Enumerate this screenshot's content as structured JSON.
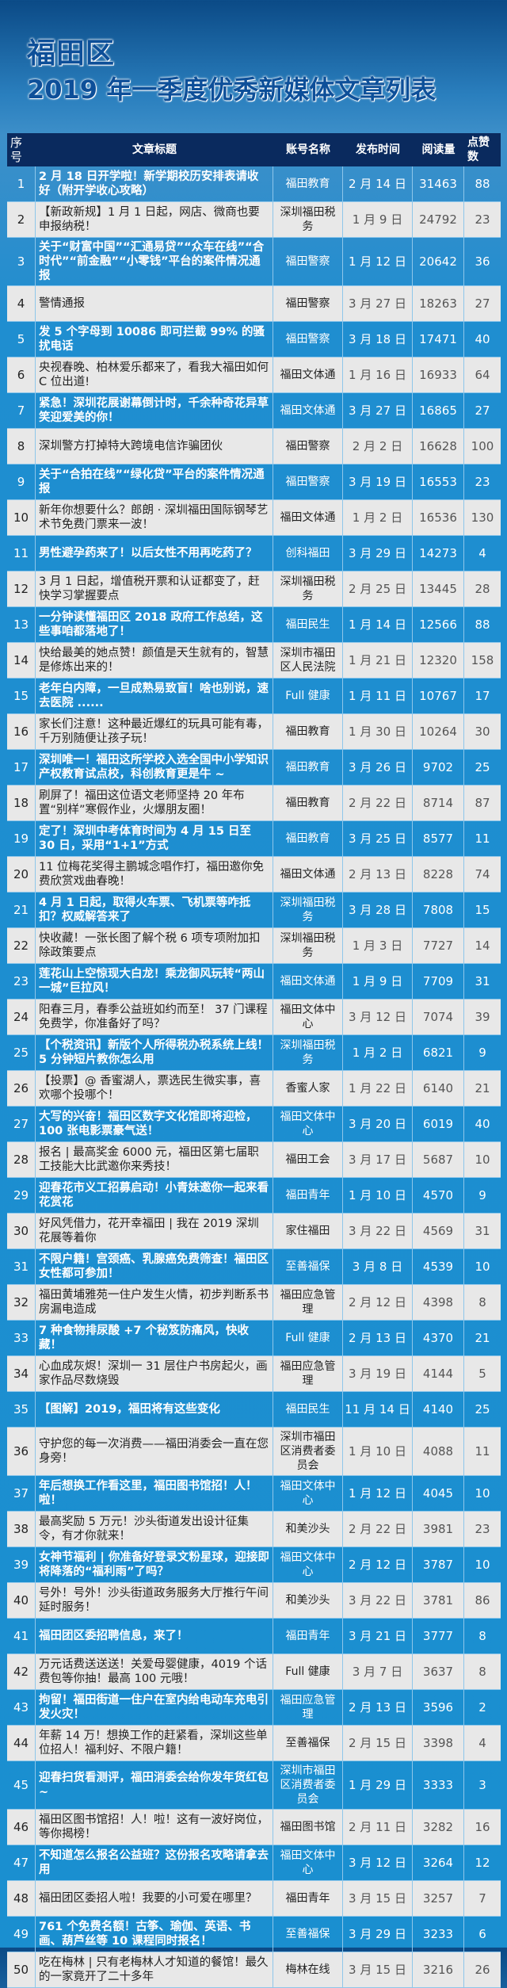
{
  "header": {
    "line1": "福田区",
    "line2": "2019 年一季度优秀新媒体文章列表"
  },
  "columns": [
    "序号",
    "文章标题",
    "账号名称",
    "发布时间",
    "阅读量",
    "点赞数"
  ],
  "colors": {
    "header_bg": "#0a2a5e",
    "odd_row_bg": "#1a8fd0",
    "even_row_bg": "#e8e8e8",
    "title_color": "#0d4f99"
  },
  "rows": [
    {
      "seq": "1",
      "title": "2 月 18 日开学啦！新学期校历安排表请收好（附开学收心攻略）",
      "account": "福田教育",
      "date": "2 月 14 日",
      "reads": "31463",
      "likes": "88"
    },
    {
      "seq": "2",
      "title": "【新政新规】1 月 1 日起，网店、微商也要申报纳税！",
      "account": "深圳福田税务",
      "date": "1 月 9 日",
      "reads": "24792",
      "likes": "23"
    },
    {
      "seq": "3",
      "title": "关于“财富中国”“汇通易贷”“众车在线”“合时代”“前金融”“小零钱”平台的案件情况通报",
      "account": "福田警察",
      "date": "1 月 12 日",
      "reads": "20642",
      "likes": "36"
    },
    {
      "seq": "4",
      "title": "警情通报",
      "account": "福田警察",
      "date": "3 月 27 日",
      "reads": "18263",
      "likes": "27"
    },
    {
      "seq": "5",
      "title": "发 5 个字母到 10086 即可拦截 99% 的骚扰电话",
      "account": "福田警察",
      "date": "3 月 18 日",
      "reads": "17471",
      "likes": "40"
    },
    {
      "seq": "6",
      "title": "央视春晚、柏林爱乐都来了，看我大福田如何 C 位出道!",
      "account": "福田文体通",
      "date": "1 月 16 日",
      "reads": "16933",
      "likes": "64"
    },
    {
      "seq": "7",
      "title": "紧急！深圳花展谢幕倒计时，千余种奇花异草笑迎爱美的你！",
      "account": "福田文体通",
      "date": "3 月 27 日",
      "reads": "16865",
      "likes": "27"
    },
    {
      "seq": "8",
      "title": "深圳警方打掉特大跨境电信诈骗团伙",
      "account": "福田警察",
      "date": "2 月 2 日",
      "reads": "16628",
      "likes": "100"
    },
    {
      "seq": "9",
      "title": "关于“合拍在线”“绿化贷”平台的案件情况通报",
      "account": "福田警察",
      "date": "3 月 19 日",
      "reads": "16553",
      "likes": "23"
    },
    {
      "seq": "10",
      "title": "新年你想要什么？郎朗 · 深圳福田国际钢琴艺术节免费门票来一波！",
      "account": "福田文体通",
      "date": "1 月 2 日",
      "reads": "16536",
      "likes": "130"
    },
    {
      "seq": "11",
      "title": "男性避孕药来了！以后女性不用再吃药了？",
      "account": "创科福田",
      "date": "3 月 29 日",
      "reads": "14273",
      "likes": "4"
    },
    {
      "seq": "12",
      "title": "3 月 1 日起，增值税开票和认证都变了，赶快学习掌握要点",
      "account": "深圳福田税务",
      "date": "2 月 25 日",
      "reads": "13445",
      "likes": "28"
    },
    {
      "seq": "13",
      "title": "一分钟读懂福田区 2018 政府工作总结，这些事咱都落地了！",
      "account": "福田民生",
      "date": "1 月 14 日",
      "reads": "12566",
      "likes": "88"
    },
    {
      "seq": "14",
      "title": "快给最美的她点赞！颜值是天生就有的，智慧是修炼出来的！",
      "account": "深圳市福田区人民法院",
      "date": "1 月 21 日",
      "reads": "12320",
      "likes": "158"
    },
    {
      "seq": "15",
      "title": "老年白内障，一旦成熟易致盲！啥也别说，速去医院 ......",
      "account": "Full 健康",
      "date": "1 月 11 日",
      "reads": "10767",
      "likes": "17"
    },
    {
      "seq": "16",
      "title": "家长们注意！这种最近爆红的玩具可能有毒，千万别随便让孩子玩！",
      "account": "福田教育",
      "date": "1 月 30 日",
      "reads": "10264",
      "likes": "30"
    },
    {
      "seq": "17",
      "title": "深圳唯一！福田这所学校入选全国中小学知识产权教育试点校，科创教育更是牛 ~",
      "account": "福田教育",
      "date": "3 月 26 日",
      "reads": "9702",
      "likes": "25"
    },
    {
      "seq": "18",
      "title": "刷屏了！福田这位语文老师坚持 20 年布置“别样”寒假作业，火爆朋友圈！",
      "account": "福田教育",
      "date": "2 月 22 日",
      "reads": "8714",
      "likes": "87"
    },
    {
      "seq": "19",
      "title": "定了！深圳中考体育时间为 4 月 15 日至 30 日，采用“1+1”方式",
      "account": "福田教育",
      "date": "3 月 25 日",
      "reads": "8577",
      "likes": "11"
    },
    {
      "seq": "20",
      "title": "11 位梅花奖得主鹏城念唱作打，福田邀你免费欣赏戏曲春晚！",
      "account": "福田文体通",
      "date": "2 月 13 日",
      "reads": "8228",
      "likes": "74"
    },
    {
      "seq": "21",
      "title": "4 月 1 日起，取得火车票、飞机票等咋抵扣？权威解答来了",
      "account": "深圳福田税务",
      "date": "3 月 28 日",
      "reads": "7808",
      "likes": "15"
    },
    {
      "seq": "22",
      "title": "快收藏！一张长图了解个税 6 项专项附加扣除政策要点",
      "account": "深圳福田税务",
      "date": "1 月 3 日",
      "reads": "7727",
      "likes": "14"
    },
    {
      "seq": "23",
      "title": "莲花山上空惊现大白龙！乘龙御风玩转“两山一城”巨拉风！",
      "account": "福田文体通",
      "date": "1 月 9 日",
      "reads": "7709",
      "likes": "31"
    },
    {
      "seq": "24",
      "title": "阳春三月，春季公益班如约而至！ 37 门课程免费学，你准备好了吗？",
      "account": "福田文体中心",
      "date": "3 月 12 日",
      "reads": "7074",
      "likes": "39"
    },
    {
      "seq": "25",
      "title": "【个税资讯】新版个人所得税办税系统上线！ 5 分钟短片教你怎么用",
      "account": "深圳福田税务",
      "date": "1 月 2 日",
      "reads": "6821",
      "likes": "9"
    },
    {
      "seq": "26",
      "title": "【投票】@ 香蜜湖人，票选民生微实事，喜欢哪个投哪个！",
      "account": "香蜜人家",
      "date": "1 月 22 日",
      "reads": "6140",
      "likes": "21"
    },
    {
      "seq": "27",
      "title": "大写的兴奋！福田区数字文化馆即将迎检，100 张电影票豪气送！",
      "account": "福田文体中心",
      "date": "3 月 20 日",
      "reads": "6019",
      "likes": "40"
    },
    {
      "seq": "28",
      "title": "报名 | 最高奖金 6000 元，福田区第七届职工技能大比武邀你来秀技！",
      "account": "福田工会",
      "date": "3 月 17 日",
      "reads": "5687",
      "likes": "10"
    },
    {
      "seq": "29",
      "title": "迎春花市义工招募启动！小青妹邀你一起来看花赏花",
      "account": "福田青年",
      "date": "1 月 10 日",
      "reads": "4570",
      "likes": "9"
    },
    {
      "seq": "30",
      "title": "好风凭借力，花开幸福田 | 我在 2019 深圳花展等着你",
      "account": "家住福田",
      "date": "3 月 22 日",
      "reads": "4569",
      "likes": "31"
    },
    {
      "seq": "31",
      "title": "不限户籍！宫颈癌、乳腺癌免费筛查！福田区女性都可参加！",
      "account": "至善福保",
      "date": "3 月 8 日",
      "reads": "4539",
      "likes": "10"
    },
    {
      "seq": "32",
      "title": "福田黄埔雅苑一住户发生火情，初步判断系书房漏电造成",
      "account": "福田应急管理",
      "date": "2 月 12 日",
      "reads": "4398",
      "likes": "8"
    },
    {
      "seq": "33",
      "title": "7 种食物排尿酸 +7 个秘笈防痛风，快收藏！",
      "account": "Full 健康",
      "date": "2 月 13 日",
      "reads": "4370",
      "likes": "21"
    },
    {
      "seq": "34",
      "title": "心血成灰烬！深圳一 31 层住户书房起火，画家作品尽数烧毁",
      "account": "福田应急管理",
      "date": "3 月 19 日",
      "reads": "4144",
      "likes": "5"
    },
    {
      "seq": "35",
      "title": "【图解】2019，福田将有这些变化",
      "account": "福田民生",
      "date": "11 月 14 日",
      "reads": "4140",
      "likes": "25"
    },
    {
      "seq": "36",
      "title": "守护您的每一次消费——福田消委会一直在您身旁！",
      "account": "深圳市福田区消费者委员会",
      "date": "1 月 10 日",
      "reads": "4088",
      "likes": "11"
    },
    {
      "seq": "37",
      "title": "年后想换工作看这里，福田图书馆招！人！啦！",
      "account": "福田文体中心",
      "date": "1 月 12 日",
      "reads": "4045",
      "likes": "10"
    },
    {
      "seq": "38",
      "title": "最高奖励 5 万元！沙头街道发出设计征集令，有才你就来！",
      "account": "和美沙头",
      "date": "2 月 22 日",
      "reads": "3981",
      "likes": "23"
    },
    {
      "seq": "39",
      "title": "女神节福利 | 你准备好登录文粉星球，迎接即将降落的“福利雨”了吗？",
      "account": "福田文体中心",
      "date": "2 月 12 日",
      "reads": "3787",
      "likes": "10"
    },
    {
      "seq": "40",
      "title": "号外！号外！沙头街道政务服务大厅推行午间延时服务！",
      "account": "和美沙头",
      "date": "3 月 22 日",
      "reads": "3781",
      "likes": "86"
    },
    {
      "seq": "41",
      "title": "福田团区委招聘信息，来了！",
      "account": "福田青年",
      "date": "3 月 21 日",
      "reads": "3777",
      "likes": "8"
    },
    {
      "seq": "42",
      "title": "万元话费送送送！关爱母婴健康，4019 个话费包等你抽！最高 100 元哦！",
      "account": "Full 健康",
      "date": "3 月 7 日",
      "reads": "3637",
      "likes": "8"
    },
    {
      "seq": "43",
      "title": "拘留！福田街道一住户在室内给电动车充电引发火灾！",
      "account": "福田应急管理",
      "date": "2 月 13 日",
      "reads": "3596",
      "likes": "2"
    },
    {
      "seq": "44",
      "title": "年薪 14 万！想换工作的赶紧看，深圳这些单位招人！福利好、不限户籍！",
      "account": "至善福保",
      "date": "2 月 15 日",
      "reads": "3398",
      "likes": "4"
    },
    {
      "seq": "45",
      "title": "迎春扫货看测评，福田消委会给你发年货红包 ~",
      "account": "深圳市福田区消费者委员会",
      "date": "1 月 29 日",
      "reads": "3333",
      "likes": "3"
    },
    {
      "seq": "46",
      "title": "福田区图书馆招！人！啦！这有一波好岗位，等你揭榜！",
      "account": "福田图书馆",
      "date": "2 月 11 日",
      "reads": "3282",
      "likes": "16"
    },
    {
      "seq": "47",
      "title": "不知道怎么报名公益班？这份报名攻略请拿去用",
      "account": "福田文体中心",
      "date": "3 月 12 日",
      "reads": "3264",
      "likes": "12"
    },
    {
      "seq": "48",
      "title": "福田团区委招人啦！我要的小可爱在哪里？",
      "account": "福田青年",
      "date": "3 月 15 日",
      "reads": "3257",
      "likes": "7"
    },
    {
      "seq": "49",
      "title": "761 个免费名额！古筝、瑜伽、英语、书画、葫芦丝等 10 课程同时报名！",
      "account": "至善福保",
      "date": "3 月 29 日",
      "reads": "3233",
      "likes": "6"
    },
    {
      "seq": "50",
      "title": "吃在梅林 | 只有老梅林人才知道的餐馆！最久的一家竟开了二十多年",
      "account": "梅林在线",
      "date": "3 月 15 日",
      "reads": "3216",
      "likes": "26"
    }
  ]
}
